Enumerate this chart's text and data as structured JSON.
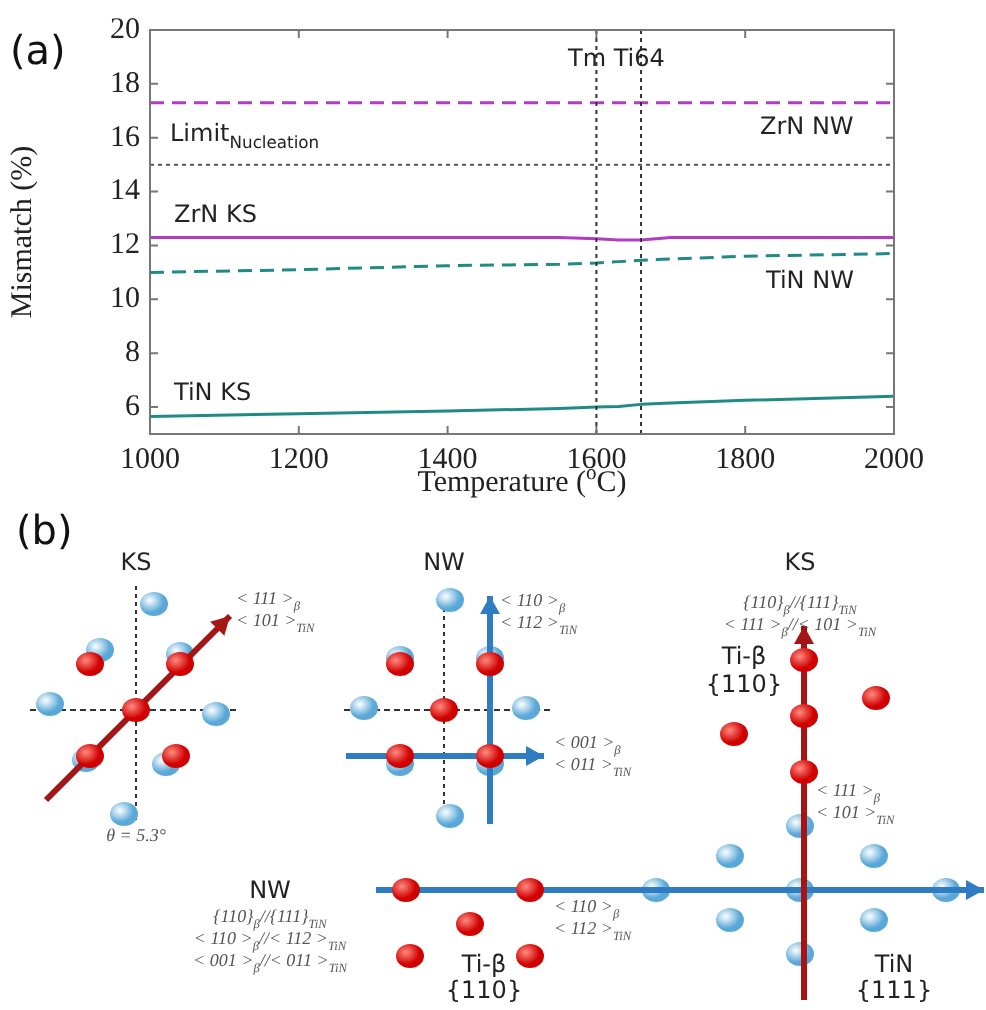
{
  "chart_data": {
    "type": "line",
    "xlabel": "Temperature ($^{o}$C)",
    "ylabel": "Mismatch (%)",
    "x": [
      1000,
      1200,
      1400,
      1550,
      1600,
      1630,
      1660,
      1700,
      1800,
      2000
    ],
    "series": [
      {
        "name": "ZrN NW",
        "color": "#b23cc4",
        "line_style": "dashed",
        "values": [
          17.3,
          17.3,
          17.3,
          17.3,
          17.3,
          17.3,
          17.3,
          17.3,
          17.3,
          17.3
        ]
      },
      {
        "name": "ZrN KS",
        "color": "#b23cc4",
        "line_style": "solid",
        "values": [
          12.3,
          12.3,
          12.3,
          12.3,
          12.25,
          12.2,
          12.2,
          12.3,
          12.3,
          12.3
        ]
      },
      {
        "name": "TiN NW",
        "color": "#1f8a86",
        "line_style": "dashed",
        "values": [
          11.0,
          11.1,
          11.25,
          11.3,
          11.35,
          11.4,
          11.45,
          11.5,
          11.6,
          11.7
        ]
      },
      {
        "name": "TiN KS",
        "color": "#1f8a86",
        "line_style": "solid",
        "values": [
          5.65,
          5.75,
          5.85,
          5.95,
          6.0,
          6.02,
          6.1,
          6.15,
          6.25,
          6.4
        ]
      }
    ],
    "marker": "none",
    "xlim": [
      1000,
      2000
    ],
    "xticks": [
      1000,
      1200,
      1400,
      1600,
      1800,
      2000
    ],
    "ylim": [
      5,
      20
    ],
    "yticks": [
      6,
      8,
      10,
      12,
      14,
      16,
      18,
      20
    ],
    "ref_lines": [
      {
        "axis": "x",
        "value": 1600,
        "label": "Tm Ti64",
        "color": "#333333",
        "line_style": "dotted"
      },
      {
        "axis": "x",
        "value": 1660,
        "label": null,
        "color": "#333333",
        "line_style": "dotted"
      },
      {
        "axis": "y",
        "value": 15,
        "label": "Limit$_{Nucleation}$",
        "color": "#555555",
        "line_style": "dotted"
      }
    ],
    "annotations": [
      "(a)",
      "(b)",
      "KS",
      "< 111 >$_{β}$",
      "< 101 >$_{TiN}$",
      "θ = 5.3°",
      "NW",
      "< 110 >$_{β}$",
      "< 112 >$_{TiN}$",
      "< 001 >$_{β}$",
      "< 011 >$_{TiN}$",
      "KS",
      "{110}$_{β}$//{111}$_{TiN}$",
      "< 111 >$_{β}$//< 101 >$_{TiN}$",
      "Ti-β",
      "{110}",
      "< 111 >$_{β}$",
      "< 101 >$_{TiN}$",
      "NW",
      "{110}$_{β}$//{111}$_{TiN}$",
      "< 110 >$_{β}$//< 112 >$_{TiN}$",
      "< 001 >$_{β}$//< 011 >$_{TiN}$",
      "< 110 >$_{β}$",
      "< 112 >$_{TiN}$",
      "Ti-β",
      "{110}",
      "TiN",
      "{111}"
    ]
  }
}
